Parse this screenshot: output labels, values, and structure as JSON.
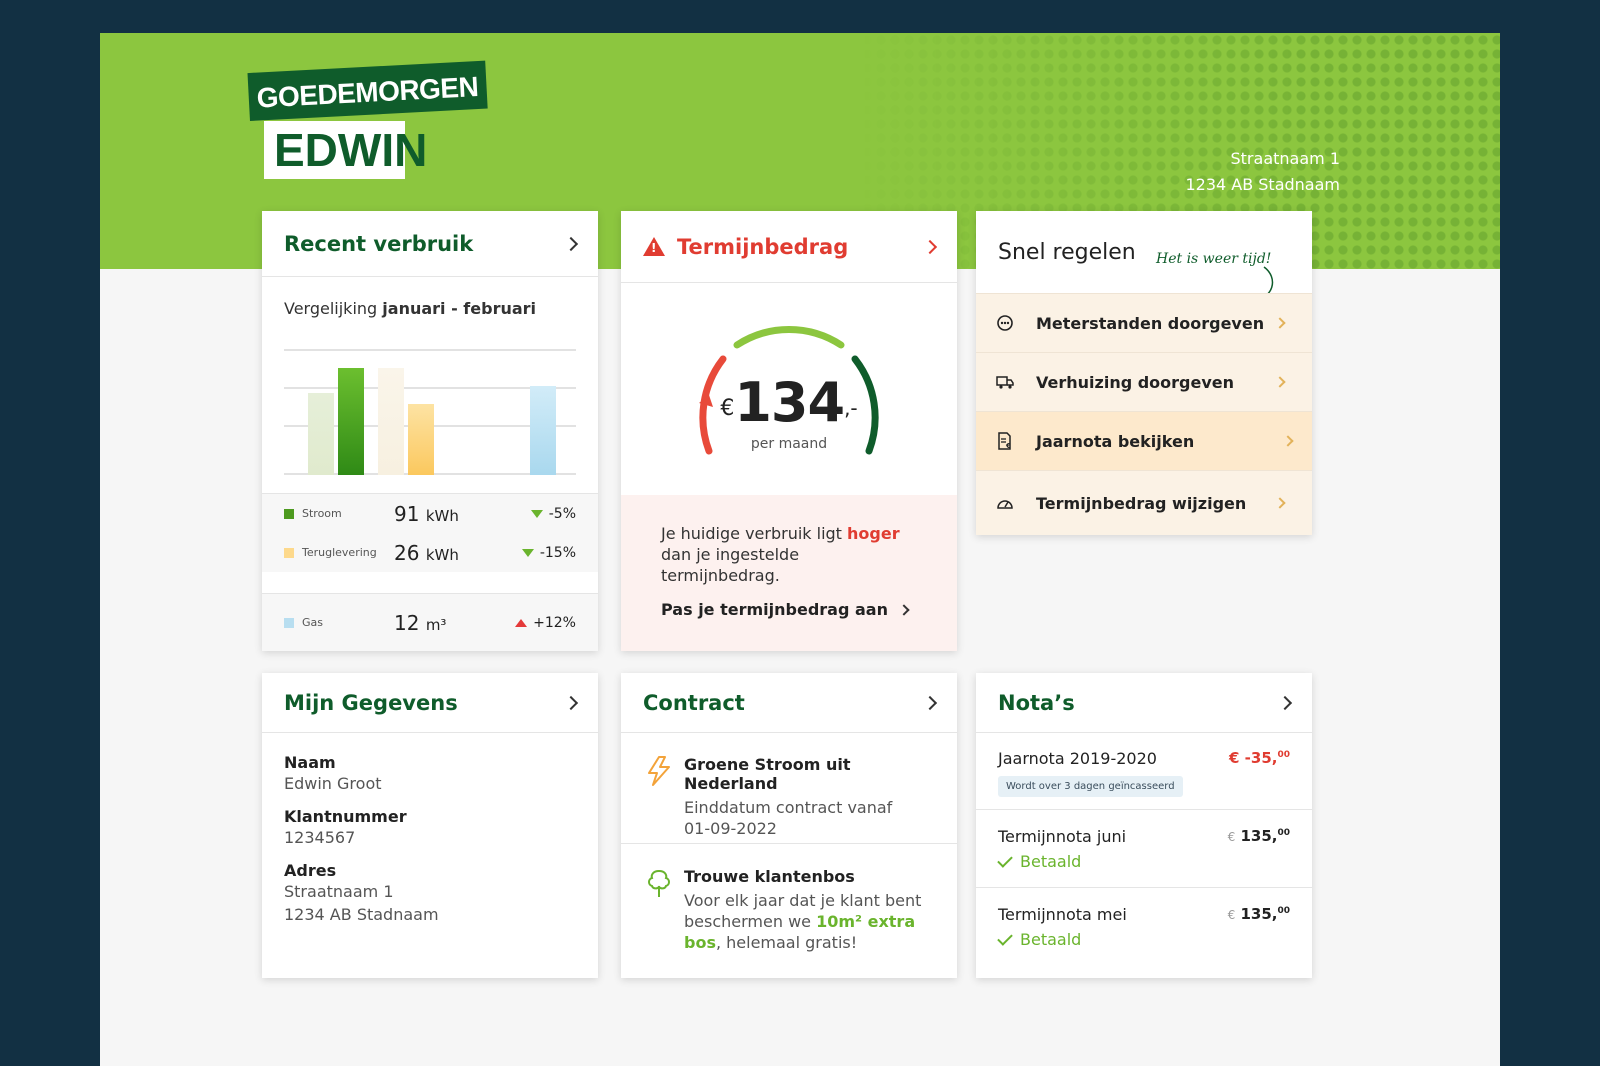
{
  "header": {
    "greeting_line1": "GOEDEMORGEN",
    "greeting_line2": "EDWIN",
    "address_line1": "Straatnaam 1",
    "address_line2": "1234 AB Stadnaam"
  },
  "recent": {
    "title": "Recent verbruik",
    "subtitle_prefix": "Vergelijking ",
    "subtitle_period": "januari - februari",
    "stats": [
      {
        "label": "Stroom",
        "value": "91",
        "unit": "kWh",
        "change": "-5%",
        "trend": "down",
        "color": "#4d9a1f"
      },
      {
        "label": "Teruglevering",
        "value": "26",
        "unit": "kWh",
        "change": "-15%",
        "trend": "down",
        "color": "#fdd98c"
      },
      {
        "label": "Gas",
        "value": "12",
        "unit": "m³",
        "change": "+12%",
        "trend": "up",
        "color": "#b8def0"
      }
    ],
    "chart_data": {
      "type": "bar",
      "categories": [
        "Stroom",
        "Teruglevering",
        "Gas"
      ],
      "series": [
        {
          "values": [
            78,
            102,
            0
          ]
        },
        {
          "values": [
            102,
            68,
            85
          ]
        }
      ],
      "ylim": [
        0,
        130
      ]
    }
  },
  "termijn": {
    "title": "Termijnbedrag",
    "currency": "€",
    "amount": "134",
    "suffix": ",-",
    "period": "per maand",
    "message_pre": "Je huidige verbruik ligt ",
    "message_hl": "hoger",
    "message_post": " dan je ingestelde termijnbedrag.",
    "link": "Pas je termijnbedrag aan"
  },
  "snel": {
    "title": "Snel regelen",
    "handwriting": "Het is weer tijd!",
    "items": [
      {
        "label": "Meterstanden doorgeven",
        "icon": "meter-icon"
      },
      {
        "label": "Verhuizing doorgeven",
        "icon": "truck-icon"
      },
      {
        "label": "Jaarnota bekijken",
        "icon": "invoice-icon"
      },
      {
        "label": "Termijnbedrag wijzigen",
        "icon": "gauge-icon"
      }
    ]
  },
  "gegevens": {
    "title": "Mijn Gegevens",
    "naam_label": "Naam",
    "naam": "Edwin Groot",
    "klant_label": "Klantnummer",
    "klant": "1234567",
    "adres_label": "Adres",
    "adres1": "Straatnaam 1",
    "adres2": "1234 AB Stadnaam"
  },
  "contract": {
    "title": "Contract",
    "item1_title": "Groene Stroom uit Nederland",
    "item1_desc": "Einddatum contract vanaf 01-09-2022",
    "item2_title": "Trouwe klantenbos",
    "item2_pre": "Voor elk jaar dat je klant bent beschermen we ",
    "item2_hl": "10m² extra bos",
    "item2_post": ", helemaal gratis!"
  },
  "nota": {
    "title": "Nota’s",
    "items": [
      {
        "title": "Jaarnota 2019-2020",
        "amount": "€ -35,",
        "cents": "00",
        "badge": "Wordt over 3 dagen geïncasseerd"
      },
      {
        "title": "Termijnnota juni",
        "currency": "€",
        "amount": "135,",
        "cents": "00",
        "status": "Betaald"
      },
      {
        "title": "Termijnnota mei",
        "currency": "€",
        "amount": "135,",
        "cents": "00",
        "status": "Betaald"
      }
    ]
  },
  "colors": {
    "brand_green": "#8cc63f",
    "dark_green": "#0f5c2b",
    "alert": "#e03c31"
  }
}
